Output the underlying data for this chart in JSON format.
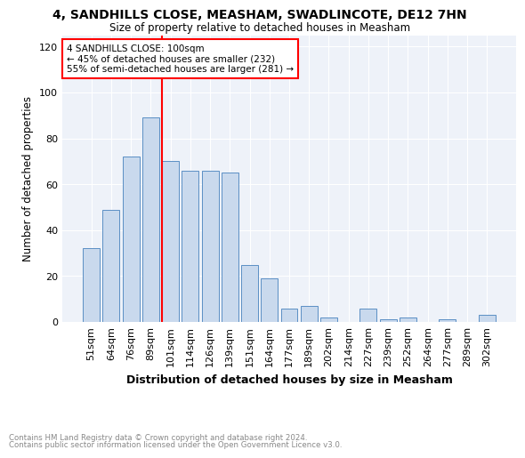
{
  "title": "4, SANDHILLS CLOSE, MEASHAM, SWADLINCOTE, DE12 7HN",
  "subtitle": "Size of property relative to detached houses in Measham",
  "xlabel": "Distribution of detached houses by size in Measham",
  "ylabel": "Number of detached properties",
  "categories": [
    "51sqm",
    "64sqm",
    "76sqm",
    "89sqm",
    "101sqm",
    "114sqm",
    "126sqm",
    "139sqm",
    "151sqm",
    "164sqm",
    "177sqm",
    "189sqm",
    "202sqm",
    "214sqm",
    "227sqm",
    "239sqm",
    "252sqm",
    "264sqm",
    "277sqm",
    "289sqm",
    "302sqm"
  ],
  "values": [
    32,
    49,
    72,
    89,
    70,
    66,
    66,
    65,
    25,
    19,
    6,
    7,
    2,
    0,
    6,
    1,
    2,
    0,
    1,
    0,
    3
  ],
  "bar_color": "#c9d9ed",
  "bar_edge_color": "#5b8fc4",
  "redline_index": 4,
  "annotation_text": "4 SANDHILLS CLOSE: 100sqm\n← 45% of detached houses are smaller (232)\n55% of semi-detached houses are larger (281) →",
  "ylim": [
    0,
    125
  ],
  "yticks": [
    0,
    20,
    40,
    60,
    80,
    100,
    120
  ],
  "footer1": "Contains HM Land Registry data © Crown copyright and database right 2024.",
  "footer2": "Contains public sector information licensed under the Open Government Licence v3.0.",
  "background_color": "#eef2f9"
}
